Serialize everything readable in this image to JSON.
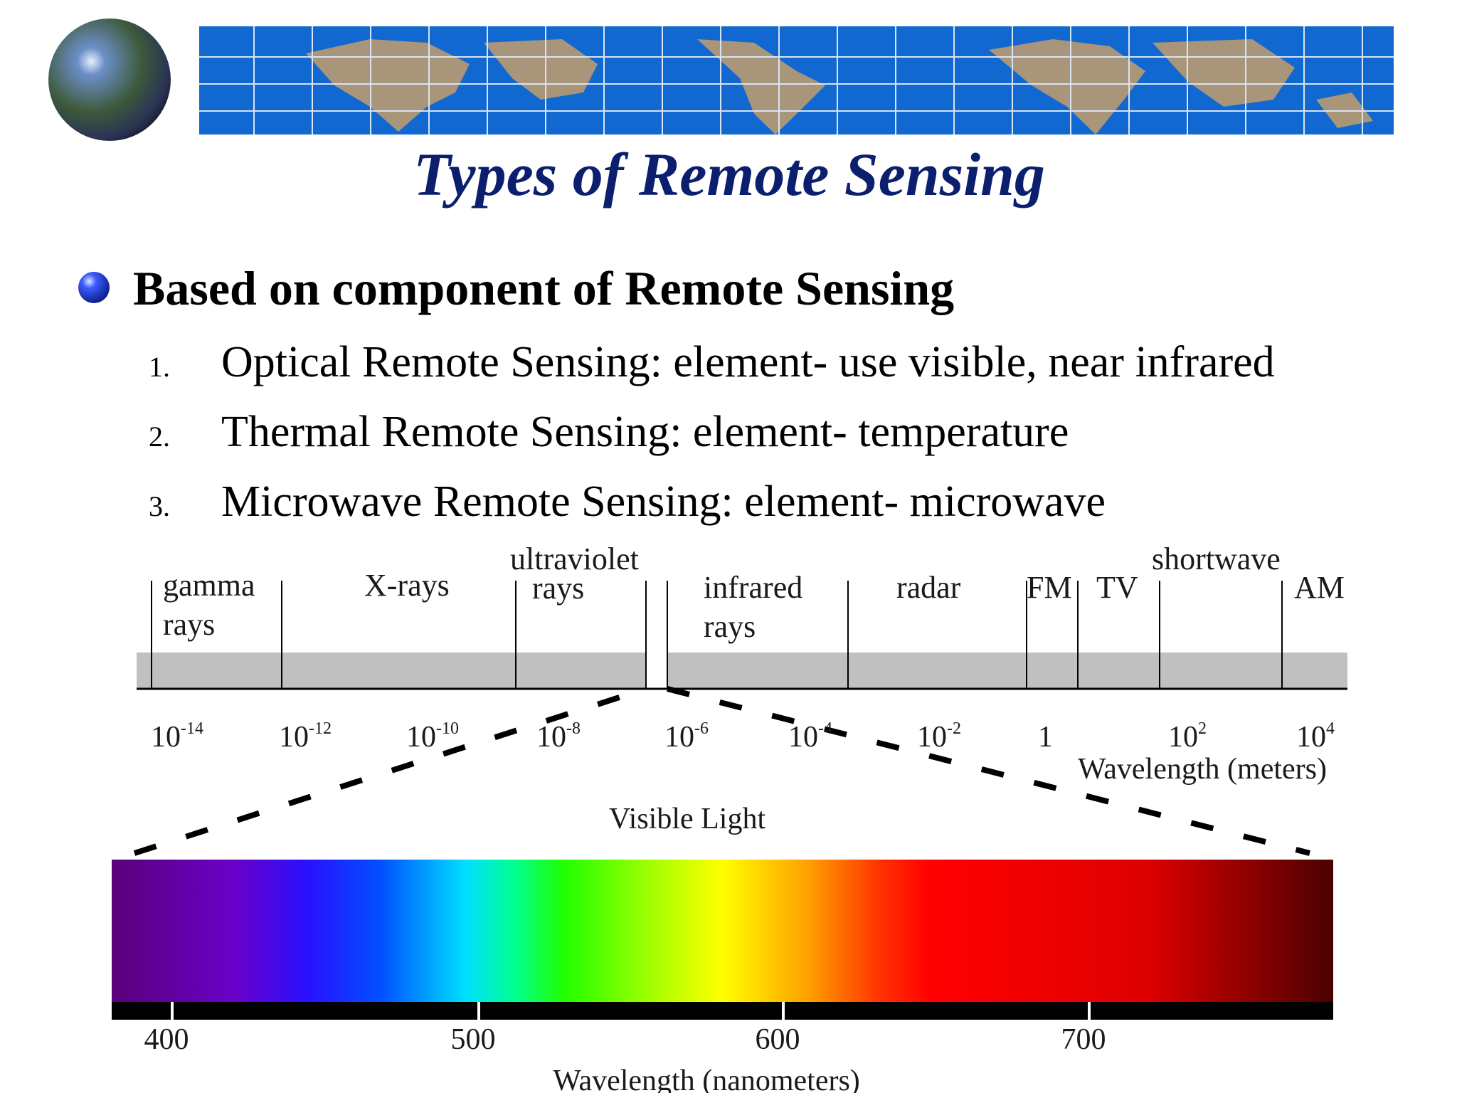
{
  "header": {
    "title": "Types of Remote Sensing"
  },
  "bullet": {
    "text": "Based on component of Remote Sensing",
    "items": [
      {
        "number": "1.",
        "text": "Optical Remote Sensing: element- use visible, near infrared"
      },
      {
        "number": "2.",
        "text": "Thermal Remote Sensing: element- temperature"
      },
      {
        "number": "3.",
        "text": "Microwave Remote Sensing: element- microwave"
      }
    ]
  },
  "spectrum": {
    "bands": [
      {
        "lines": [
          "gamma",
          "rays"
        ]
      },
      {
        "lines": [
          "X-rays"
        ]
      },
      {
        "lines": [
          "ultraviolet",
          "rays"
        ]
      },
      {
        "lines": [
          "infrared",
          "rays"
        ]
      },
      {
        "lines": [
          "radar"
        ]
      },
      {
        "lines": [
          "FM"
        ]
      },
      {
        "lines": [
          "TV"
        ]
      },
      {
        "lines": [
          "shortwave"
        ]
      },
      {
        "lines": [
          "AM"
        ]
      }
    ],
    "ticks": [
      {
        "base": "10",
        "exp": "-14"
      },
      {
        "base": "10",
        "exp": "-12"
      },
      {
        "base": "10",
        "exp": "-10"
      },
      {
        "base": "10",
        "exp": "-8"
      },
      {
        "base": "10",
        "exp": "-6"
      },
      {
        "base": "10",
        "exp": "-4"
      },
      {
        "base": "10",
        "exp": "-2"
      },
      {
        "base": "1"
      },
      {
        "base": "10",
        "exp": "2"
      },
      {
        "base": "10",
        "exp": "4"
      }
    ],
    "axis_label": "Wavelength (meters)",
    "visible_label": "Visible Light",
    "nm_ticks": [
      400,
      500,
      600,
      700
    ],
    "nm_label": "Wavelength (nanometers)"
  }
}
